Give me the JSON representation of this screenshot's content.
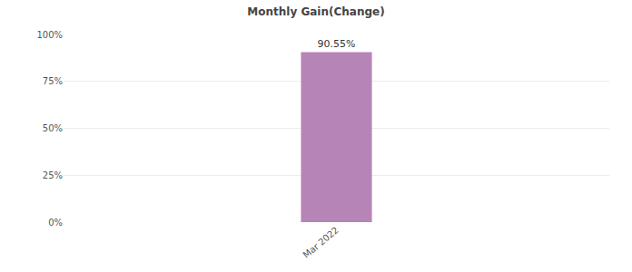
{
  "chart_data": {
    "type": "bar",
    "title": "Monthly Gain(Change)",
    "categories": [
      "Mar 2022"
    ],
    "values": [
      90.55
    ],
    "value_labels": [
      "90.55%"
    ],
    "color": "#b784b7",
    "data_labels": true,
    "ylim": [
      0,
      100
    ],
    "yticks": [
      {
        "value": 0,
        "label": "0%"
      },
      {
        "value": 25,
        "label": "25%"
      },
      {
        "value": 50,
        "label": "50%"
      },
      {
        "value": 75,
        "label": "75%"
      },
      {
        "value": 100,
        "label": "100%"
      }
    ],
    "grid": true
  }
}
